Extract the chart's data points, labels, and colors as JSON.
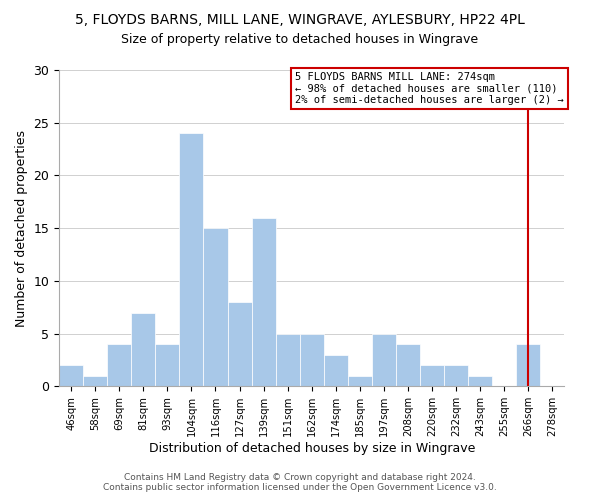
{
  "title": "5, FLOYDS BARNS, MILL LANE, WINGRAVE, AYLESBURY, HP22 4PL",
  "subtitle": "Size of property relative to detached houses in Wingrave",
  "xlabel": "Distribution of detached houses by size in Wingrave",
  "ylabel": "Number of detached properties",
  "bin_labels": [
    "46sqm",
    "58sqm",
    "69sqm",
    "81sqm",
    "93sqm",
    "104sqm",
    "116sqm",
    "127sqm",
    "139sqm",
    "151sqm",
    "162sqm",
    "174sqm",
    "185sqm",
    "197sqm",
    "208sqm",
    "220sqm",
    "232sqm",
    "243sqm",
    "255sqm",
    "266sqm",
    "278sqm"
  ],
  "bar_heights": [
    2,
    1,
    4,
    7,
    4,
    24,
    15,
    8,
    16,
    5,
    5,
    3,
    1,
    5,
    4,
    2,
    2,
    1,
    0,
    4,
    0
  ],
  "bar_color": "#a8c8e8",
  "bar_edge_color": "#ffffff",
  "ylim": [
    0,
    30
  ],
  "yticks": [
    0,
    5,
    10,
    15,
    20,
    25,
    30
  ],
  "annotation_line1": "5 FLOYDS BARNS MILL LANE: 274sqm",
  "annotation_line2": "← 98% of detached houses are smaller (110)",
  "annotation_line3": "2% of semi-detached houses are larger (2) →",
  "annotation_box_color": "#ffffff",
  "annotation_box_edge_color": "#cc0000",
  "vline_color": "#cc0000",
  "vline_x": 19.5,
  "footer_text": "Contains HM Land Registry data © Crown copyright and database right 2024.\nContains public sector information licensed under the Open Government Licence v3.0.",
  "background_color": "#ffffff",
  "grid_color": "#d0d0d0"
}
